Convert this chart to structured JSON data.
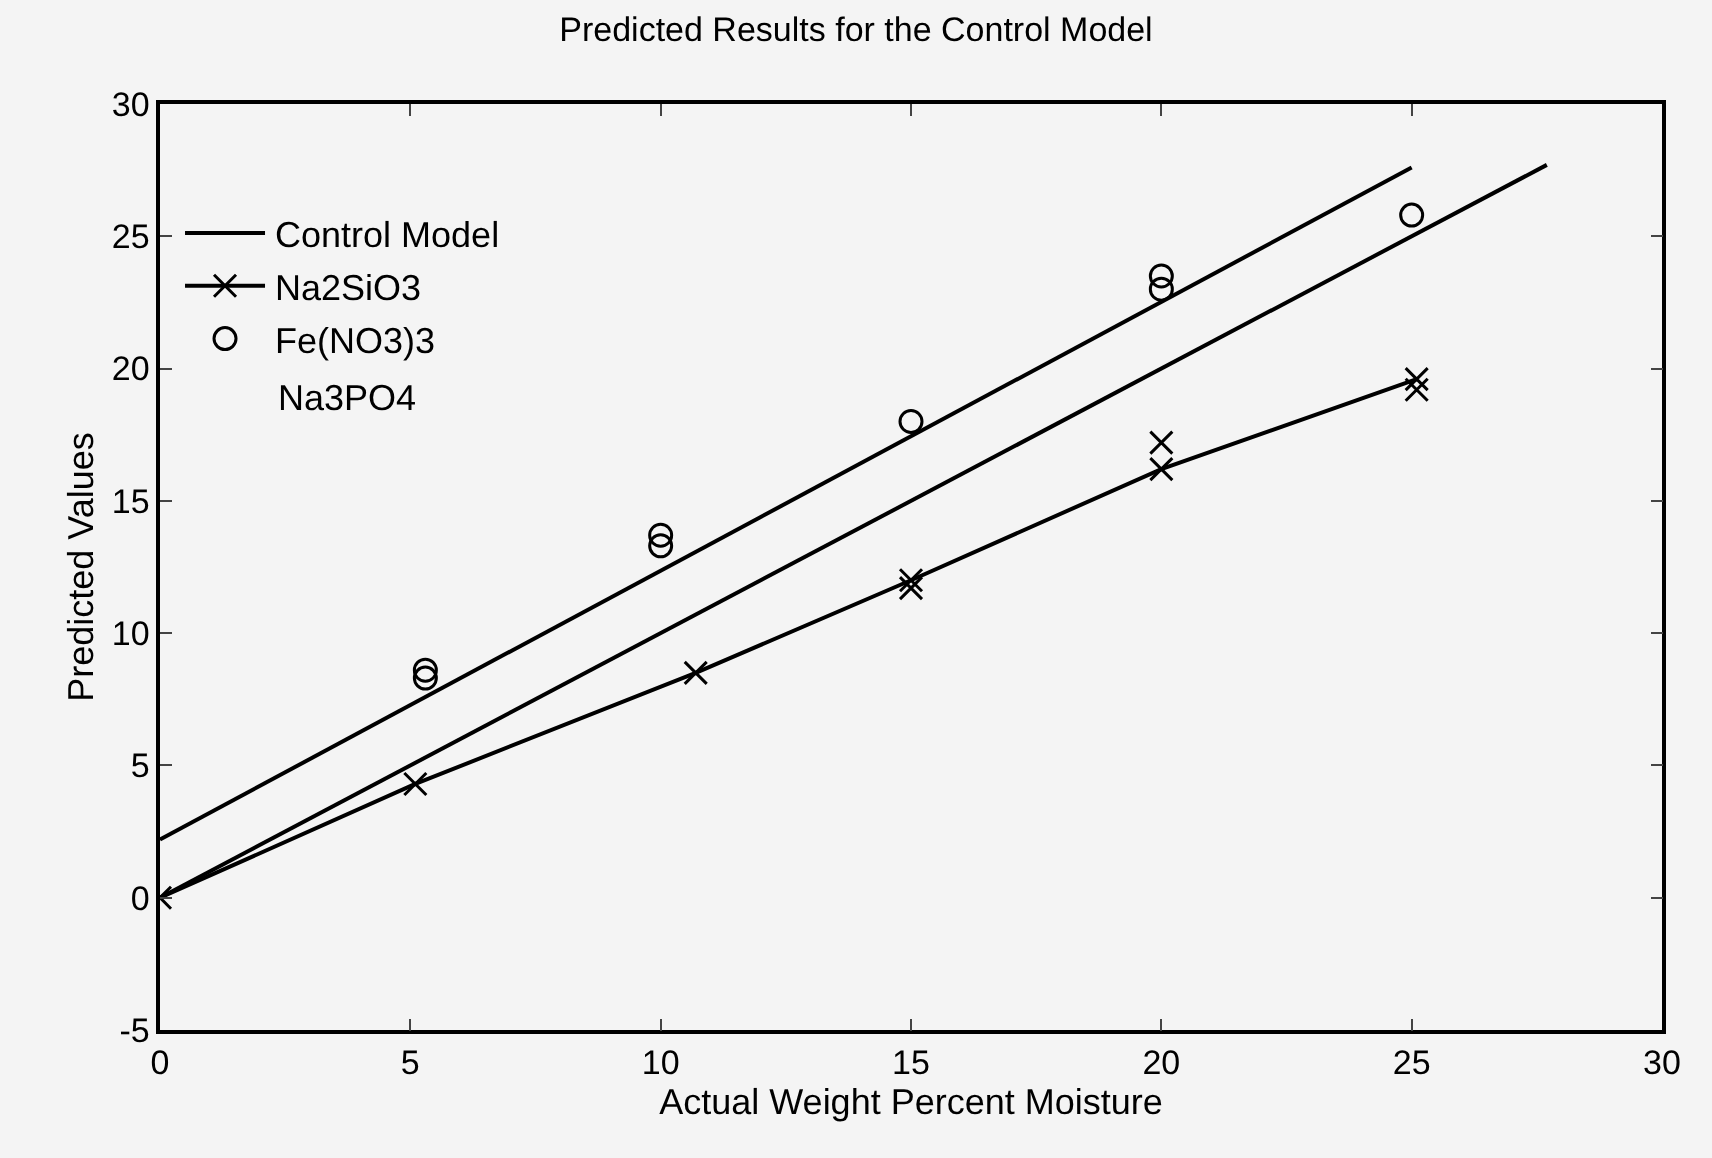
{
  "chart_data": {
    "type": "line",
    "title": "Predicted Results for the Control Model",
    "xlabel": "Actual Weight Percent Moisture",
    "ylabel": "Predicted Values",
    "xlim": [
      0,
      30
    ],
    "xticks": [
      0,
      5,
      10,
      15,
      20,
      25,
      30
    ],
    "ylim": [
      -5,
      30
    ],
    "yticks": [
      -5,
      0,
      5,
      10,
      15,
      20,
      25,
      30
    ],
    "grid": false,
    "legend": "top left",
    "series": [
      {
        "name": "Control Model",
        "color": "#000000",
        "x": [
          0,
          27.7
        ],
        "values": [
          0,
          27.7
        ]
      },
      {
        "name": "Na2SiO3",
        "color": "#000000",
        "marker": "cross",
        "x": [
          0,
          5.1,
          10.7,
          15,
          20,
          25.1
        ],
        "values": [
          0,
          4.3,
          8.5,
          12,
          16.2,
          19.6
        ]
      },
      {
        "type": "scatter",
        "color": "#000000",
        "marker": "cross",
        "x": [
          15,
          20,
          25.1
        ],
        "values": [
          11.7,
          17.2,
          19.2
        ]
      },
      {
        "name": "Fe(NO3)3",
        "type": "scatter",
        "color": "#000000",
        "marker": "circle",
        "x": [
          5.3,
          5.3,
          10,
          10,
          15,
          20,
          20,
          25
        ],
        "values": [
          8.3,
          8.6,
          13.3,
          13.7,
          18,
          23,
          23.5,
          25.8
        ]
      },
      {
        "color": "#000000",
        "x": [
          0,
          25
        ],
        "values": [
          2.2,
          27.6
        ]
      }
    ],
    "annotations": [
      "Na3PO4"
    ]
  }
}
